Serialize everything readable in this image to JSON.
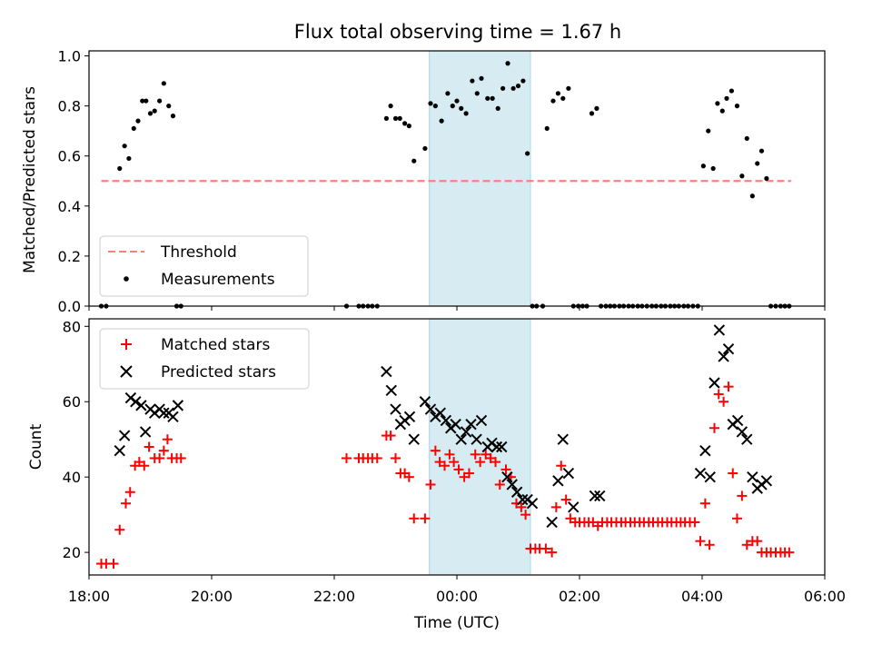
{
  "chart_data": [
    {
      "type": "scatter",
      "title": "Flux total observing time = 1.67 h",
      "xlabel": "",
      "ylabel": "Matched/Predicted stars",
      "xlim": [
        18.0,
        30.0
      ],
      "ylim": [
        0.0,
        1.02
      ],
      "yticks": [
        "0.0",
        "0.2",
        "0.4",
        "0.6",
        "0.8",
        "1.0"
      ],
      "yticks_values": [
        0.0,
        0.2,
        0.4,
        0.6,
        0.8,
        1.0
      ],
      "shaded_region": {
        "x": [
          23.55,
          25.2
        ],
        "color": "#add8e6"
      },
      "legend_position": "lower left",
      "threshold": {
        "name": "Threshold",
        "x": [
          18.2,
          29.45
        ],
        "y": 0.5,
        "color": "#ff7f7f",
        "style": "dashed"
      },
      "series": [
        {
          "name": "Measurements",
          "color": "#000000",
          "marker": "dot",
          "x": [
            18.2,
            18.28,
            18.5,
            18.58,
            18.65,
            18.73,
            18.8,
            18.87,
            18.93,
            19.0,
            19.07,
            19.15,
            19.22,
            19.3,
            19.37,
            19.43,
            19.5,
            22.2,
            22.4,
            22.47,
            22.55,
            22.62,
            22.7,
            22.85,
            22.92,
            23.0,
            23.07,
            23.15,
            23.22,
            23.3,
            23.48,
            23.57,
            23.65,
            23.75,
            23.85,
            23.93,
            24.0,
            24.07,
            24.15,
            24.25,
            24.33,
            24.4,
            24.5,
            24.58,
            24.67,
            24.75,
            24.83,
            24.92,
            25.0,
            25.08,
            25.15,
            25.23,
            25.3,
            25.4,
            25.47,
            25.57,
            25.65,
            25.73,
            25.82,
            25.9,
            25.98,
            26.05,
            26.12,
            26.2,
            26.28,
            26.35,
            26.43,
            26.5,
            26.57,
            26.65,
            26.72,
            26.8,
            26.87,
            26.95,
            27.02,
            27.1,
            27.18,
            27.25,
            27.33,
            27.4,
            27.48,
            27.55,
            27.62,
            27.7,
            27.77,
            27.85,
            27.93,
            28.02,
            28.1,
            28.18,
            28.25,
            28.33,
            28.4,
            28.48,
            28.57,
            28.65,
            28.73,
            28.82,
            28.9,
            28.97,
            29.05,
            29.12,
            29.2,
            29.28,
            29.35,
            29.42
          ],
          "y": [
            0.0,
            0.0,
            0.55,
            0.64,
            0.59,
            0.71,
            0.74,
            0.82,
            0.82,
            0.77,
            0.78,
            0.82,
            0.89,
            0.8,
            0.76,
            0.0,
            0.0,
            0.0,
            0.0,
            0.0,
            0.0,
            0.0,
            0.0,
            0.75,
            0.8,
            0.75,
            0.75,
            0.73,
            0.72,
            0.58,
            0.63,
            0.81,
            0.8,
            0.74,
            0.85,
            0.8,
            0.82,
            0.79,
            0.77,
            0.9,
            0.85,
            0.91,
            0.83,
            0.83,
            0.79,
            0.87,
            0.97,
            0.87,
            0.88,
            0.9,
            0.61,
            0.0,
            0.0,
            0.0,
            0.71,
            0.82,
            0.85,
            0.83,
            0.87,
            0.0,
            0.0,
            0.0,
            0.0,
            0.77,
            0.79,
            0.0,
            0.0,
            0.0,
            0.0,
            0.0,
            0.0,
            0.0,
            0.0,
            0.0,
            0.0,
            0.0,
            0.0,
            0.0,
            0.0,
            0.0,
            0.0,
            0.0,
            0.0,
            0.0,
            0.0,
            0.0,
            0.0,
            0.56,
            0.7,
            0.55,
            0.81,
            0.78,
            0.83,
            0.86,
            0.8,
            0.52,
            0.67,
            0.44,
            0.57,
            0.62,
            0.51,
            0.0,
            0.0,
            0.0,
            0.0,
            0.0
          ]
        }
      ]
    },
    {
      "type": "scatter",
      "title": "",
      "xlabel": "Time (UTC)",
      "ylabel": "Count",
      "xlim": [
        18.0,
        30.0
      ],
      "ylim": [
        14.0,
        82.0
      ],
      "xticks": [
        "18:00",
        "20:00",
        "22:00",
        "00:00",
        "02:00",
        "04:00",
        "06:00"
      ],
      "xticks_values": [
        18,
        20,
        22,
        24,
        26,
        28,
        30
      ],
      "yticks": [
        "20",
        "40",
        "60",
        "80"
      ],
      "yticks_values": [
        20,
        40,
        60,
        80
      ],
      "shaded_region": {
        "x": [
          23.55,
          25.2
        ],
        "color": "#add8e6"
      },
      "legend_position": "upper left",
      "series": [
        {
          "name": "Matched stars",
          "color": "#ff0000",
          "marker": "plus",
          "x": [
            18.2,
            18.28,
            18.4,
            18.5,
            18.6,
            18.67,
            18.75,
            18.82,
            18.9,
            18.98,
            19.07,
            19.15,
            19.22,
            19.28,
            19.35,
            19.43,
            19.5,
            22.2,
            22.4,
            22.47,
            22.55,
            22.62,
            22.7,
            22.85,
            22.92,
            23.0,
            23.08,
            23.15,
            23.22,
            23.3,
            23.48,
            23.57,
            23.65,
            23.72,
            23.8,
            23.88,
            23.95,
            24.03,
            24.12,
            24.2,
            24.3,
            24.38,
            24.47,
            24.55,
            24.63,
            24.7,
            24.8,
            24.88,
            24.97,
            25.05,
            25.12,
            25.2,
            25.28,
            25.35,
            25.45,
            25.55,
            25.62,
            25.7,
            25.78,
            25.85,
            25.93,
            26.0,
            26.08,
            26.15,
            26.22,
            26.3,
            26.37,
            26.45,
            26.52,
            26.6,
            26.68,
            26.75,
            26.83,
            26.9,
            26.98,
            27.05,
            27.13,
            27.2,
            27.28,
            27.35,
            27.43,
            27.5,
            27.58,
            27.65,
            27.72,
            27.8,
            27.88,
            27.97,
            28.05,
            28.12,
            28.2,
            28.27,
            28.35,
            28.43,
            28.5,
            28.57,
            28.65,
            28.73,
            28.82,
            28.9,
            28.97,
            29.05,
            29.12,
            29.2,
            29.28,
            29.35,
            29.42
          ],
          "y": [
            17,
            17,
            17,
            26,
            33,
            36,
            43,
            44,
            43,
            48,
            45,
            45,
            47,
            50,
            45,
            45,
            45,
            45,
            45,
            45,
            45,
            45,
            45,
            51,
            51,
            45,
            41,
            41,
            40,
            29,
            29,
            38,
            47,
            44,
            43,
            46,
            44,
            42,
            40,
            41,
            46,
            44,
            46,
            45,
            44,
            38,
            42,
            40,
            33,
            32,
            30,
            21,
            21,
            21,
            21,
            20,
            32,
            43,
            34,
            29,
            28,
            28,
            28,
            28,
            28,
            27,
            28,
            28,
            28,
            28,
            28,
            28,
            28,
            28,
            28,
            28,
            28,
            28,
            28,
            28,
            28,
            28,
            28,
            28,
            28,
            28,
            28,
            23,
            33,
            22,
            53,
            62,
            60,
            64,
            41,
            29,
            35,
            22,
            23,
            23,
            20,
            20,
            20,
            20,
            20,
            20,
            20
          ]
        },
        {
          "name": "Predicted stars",
          "color": "#000000",
          "marker": "x",
          "x": [
            18.5,
            18.58,
            18.68,
            18.76,
            18.85,
            18.92,
            19.0,
            19.07,
            19.15,
            19.22,
            19.3,
            19.37,
            19.45,
            22.85,
            22.93,
            23.0,
            23.08,
            23.15,
            23.23,
            23.3,
            23.48,
            23.57,
            23.65,
            23.73,
            23.82,
            23.9,
            23.98,
            24.07,
            24.15,
            24.23,
            24.32,
            24.4,
            24.5,
            24.57,
            24.65,
            24.73,
            24.82,
            24.9,
            24.98,
            25.07,
            25.15,
            25.23,
            25.55,
            25.65,
            25.73,
            25.82,
            25.9,
            26.25,
            26.33,
            27.97,
            28.05,
            28.13,
            28.2,
            28.28,
            28.35,
            28.43,
            28.5,
            28.58,
            28.65,
            28.73,
            28.82,
            28.9,
            28.97,
            29.05
          ],
          "y": [
            47,
            51,
            61,
            60,
            59,
            52,
            58,
            57,
            58,
            57,
            57,
            56,
            59,
            68,
            63,
            58,
            54,
            55,
            56,
            50,
            60,
            58,
            56,
            57,
            55,
            53,
            54,
            50,
            52,
            54,
            50,
            55,
            48,
            49,
            48,
            48,
            40,
            38,
            36,
            34,
            34,
            33,
            28,
            39,
            50,
            41,
            32,
            35,
            35,
            41,
            47,
            40,
            65,
            79,
            72,
            74,
            54,
            55,
            52,
            50,
            40,
            37,
            38,
            39
          ]
        }
      ]
    }
  ]
}
